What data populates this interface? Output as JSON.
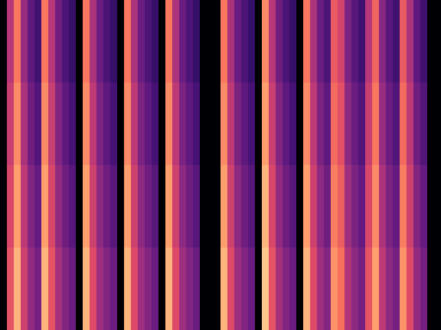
{
  "chart_data": {
    "type": "heatmap",
    "tick_labels": false,
    "zlim": [
      -70,
      0
    ],
    "cells": [
      [
        -80,
        -35,
        -20,
        -40,
        -50,
        -55,
        -20,
        -35,
        -47,
        -53,
        -57,
        -80,
        -20,
        -37,
        -48,
        -53,
        -57,
        -80,
        -20,
        -37,
        -48,
        -53,
        -57,
        -80,
        -20,
        -37,
        -48,
        -53,
        -57,
        -78,
        -80,
        -80,
        -20,
        -37,
        -48,
        -53,
        -57,
        -80,
        -17,
        -35,
        -47,
        -53,
        -57,
        -80,
        -20,
        -37,
        -48,
        -53,
        -25,
        -30,
        -45,
        -51,
        -55,
        -35,
        -23,
        -43,
        -51,
        -55,
        -25,
        -37,
        -50,
        -55,
        -80,
        -80
      ],
      [
        -80,
        -32,
        -17,
        -37,
        -47,
        -52,
        -17,
        -32,
        -44,
        -50,
        -54,
        -80,
        -17,
        -34,
        -45,
        -50,
        -54,
        -80,
        -17,
        -34,
        -45,
        -50,
        -54,
        -80,
        -17,
        -34,
        -45,
        -50,
        -54,
        -78,
        -80,
        -80,
        -17,
        -34,
        -45,
        -50,
        -54,
        -80,
        -14,
        -32,
        -44,
        -50,
        -54,
        -80,
        -17,
        -34,
        -45,
        -50,
        -22,
        -27,
        -42,
        -48,
        -52,
        -32,
        -20,
        -40,
        -48,
        -52,
        -22,
        -34,
        -47,
        -52,
        -80,
        -80
      ],
      [
        -80,
        -29,
        -14,
        -34,
        -44,
        -49,
        -14,
        -29,
        -41,
        -47,
        -51,
        -80,
        -14,
        -31,
        -42,
        -47,
        -51,
        -80,
        -14,
        -31,
        -42,
        -47,
        -51,
        -80,
        -14,
        -31,
        -42,
        -47,
        -51,
        -78,
        -80,
        -80,
        -14,
        -31,
        -42,
        -47,
        -51,
        -80,
        -11,
        -29,
        -41,
        -47,
        -51,
        -80,
        -14,
        -31,
        -42,
        -47,
        -19,
        -24,
        -39,
        -45,
        -49,
        -29,
        -17,
        -37,
        -45,
        -49,
        -19,
        -31,
        -44,
        -49,
        -80,
        -80
      ],
      [
        -80,
        -26,
        -11,
        -31,
        -41,
        -46,
        -11,
        -26,
        -38,
        -44,
        -48,
        -80,
        -11,
        -28,
        -39,
        -44,
        -48,
        -80,
        -11,
        -28,
        -39,
        -44,
        -48,
        -80,
        -11,
        -28,
        -39,
        -44,
        -48,
        -78,
        -80,
        -80,
        -11,
        -28,
        -39,
        -44,
        -48,
        -80,
        -8,
        -26,
        -38,
        -44,
        -48,
        -80,
        -11,
        -28,
        -39,
        -44,
        -16,
        -21,
        -36,
        -42,
        -46,
        -26,
        -14,
        -34,
        -42,
        -46,
        -16,
        -28,
        -41,
        -46,
        -80,
        -80
      ]
    ]
  }
}
